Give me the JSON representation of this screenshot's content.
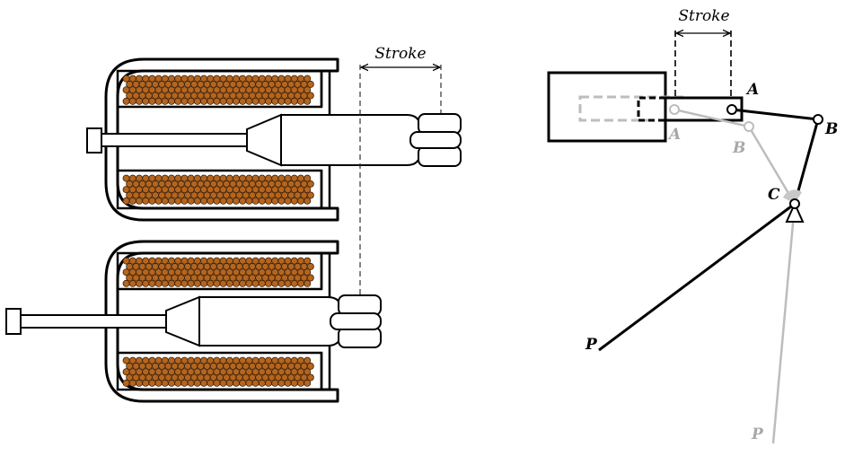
{
  "solenoid": {
    "stroke_label": "Stroke",
    "coil_color": "#b5651d",
    "coil_outline": "#3a1f08"
  },
  "linkage": {
    "stroke_label": "Stroke",
    "point_a": "A",
    "point_b": "B",
    "point_c": "C",
    "point_p": "P",
    "ghost_a": "A",
    "ghost_b": "B",
    "ghost_p": "P",
    "active_color": "#000000",
    "ghost_color": "#bdbdbd"
  }
}
